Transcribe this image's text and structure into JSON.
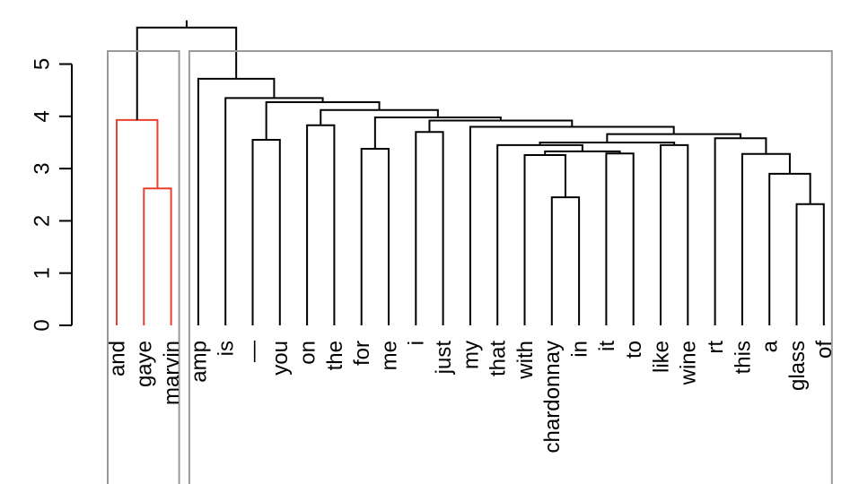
{
  "chart_data": {
    "type": "dendrogram",
    "title": "",
    "xlabel": "",
    "ylabel": "",
    "ylim": [
      0,
      5.8
    ],
    "yticks": [
      "0",
      "1",
      "2",
      "3",
      "4",
      "5"
    ],
    "leaves": [
      "and",
      "gaye",
      "marvin",
      "amp",
      "is",
      "—",
      "you",
      "on",
      "the",
      "for",
      "me",
      "i",
      "just",
      "my",
      "that",
      "with",
      "chardonnay",
      "in",
      "it",
      "to",
      "like",
      "wine",
      "rt",
      "this",
      "a",
      "glass",
      "of"
    ],
    "colors": {
      "highlight": "#e8402f",
      "line": "#000000",
      "box": "#9a9a9a"
    },
    "merges": [
      {
        "left": "L-1",
        "right": "L-2",
        "height": 2.62,
        "color": "highlight"
      },
      {
        "left": "L-0",
        "right": "M-0",
        "height": 3.93,
        "color": "highlight"
      },
      {
        "left": "L-16",
        "right": "L-17",
        "height": 2.45
      },
      {
        "left": "L-25",
        "right": "L-26",
        "height": 2.32
      },
      {
        "left": "L-24",
        "right": "M-3",
        "height": 2.9
      },
      {
        "left": "L-23",
        "right": "M-4",
        "height": 3.28
      },
      {
        "left": "L-18",
        "right": "L-19",
        "height": 3.29
      },
      {
        "left": "L-15",
        "right": "M-2",
        "height": 3.26
      },
      {
        "left": "M-7",
        "right": "M-6",
        "height": 3.33
      },
      {
        "left": "L-14",
        "right": "M-8",
        "height": 3.45
      },
      {
        "left": "L-20",
        "right": "L-21",
        "height": 3.45
      },
      {
        "left": "M-9",
        "right": "M-10",
        "height": 3.5
      },
      {
        "left": "L-22",
        "right": "M-5",
        "height": 3.58
      },
      {
        "left": "M-11",
        "right": "M-12",
        "height": 3.66
      },
      {
        "left": "L-13",
        "right": "M-13",
        "height": 3.8
      },
      {
        "left": "L-11",
        "right": "L-12",
        "height": 3.7
      },
      {
        "left": "M-15",
        "right": "M-14",
        "height": 3.92
      },
      {
        "left": "L-9",
        "right": "L-10",
        "height": 3.38
      },
      {
        "left": "M-17",
        "right": "M-16",
        "height": 3.98
      },
      {
        "left": "L-7",
        "right": "L-8",
        "height": 3.83
      },
      {
        "left": "M-19",
        "right": "M-18",
        "height": 4.12
      },
      {
        "left": "L-5",
        "right": "L-6",
        "height": 3.55
      },
      {
        "left": "M-21",
        "right": "M-20",
        "height": 4.27
      },
      {
        "left": "L-4",
        "right": "M-22",
        "height": 4.35
      },
      {
        "left": "L-3",
        "right": "M-23",
        "height": 4.72
      },
      {
        "left": "M-1",
        "right": "M-24",
        "height": 5.7
      }
    ],
    "groups": [
      {
        "from": 0,
        "to": 2
      },
      {
        "from": 3,
        "to": 26
      }
    ]
  }
}
